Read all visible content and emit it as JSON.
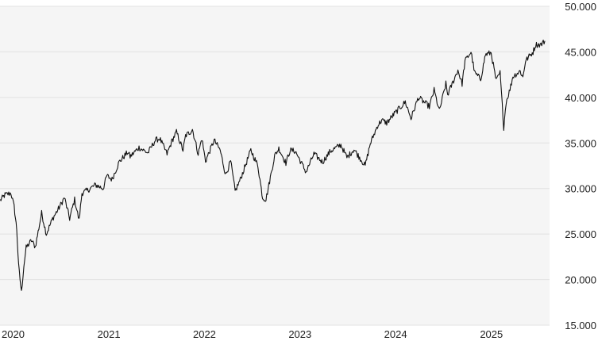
{
  "chart_data": {
    "type": "line",
    "title": "",
    "xlabel": "",
    "ylabel": "",
    "y_axis_side": "right",
    "grid": "horizontal",
    "colors": {
      "plot_background": "#f5f5f5",
      "line": "#111111",
      "grid": "#e2e2e2"
    },
    "ylim": [
      15000,
      50000
    ],
    "xlim": [
      "2020-01-01",
      "2025-09-30"
    ],
    "y_ticks": [
      {
        "value": 15000,
        "label": "15.000"
      },
      {
        "value": 20000,
        "label": "20.000"
      },
      {
        "value": 25000,
        "label": "25.000"
      },
      {
        "value": 30000,
        "label": "30.000"
      },
      {
        "value": 35000,
        "label": "35.000"
      },
      {
        "value": 40000,
        "label": "40.000"
      },
      {
        "value": 45000,
        "label": "45.000"
      },
      {
        "value": 50000,
        "label": "50.000"
      }
    ],
    "x_ticks": [
      {
        "value": "2020-01-01",
        "label": "2020"
      },
      {
        "value": "2021-01-01",
        "label": "2021"
      },
      {
        "value": "2022-01-01",
        "label": "2022"
      },
      {
        "value": "2023-01-01",
        "label": "2023"
      },
      {
        "value": "2024-01-01",
        "label": "2024"
      },
      {
        "value": "2025-01-01",
        "label": "2025"
      }
    ],
    "series": [
      {
        "values": [
          [
            "2020-01-02",
            28700
          ],
          [
            "2020-01-20",
            29300
          ],
          [
            "2020-02-12",
            29500
          ],
          [
            "2020-02-24",
            28000
          ],
          [
            "2020-03-05",
            25500
          ],
          [
            "2020-03-12",
            21500
          ],
          [
            "2020-03-23",
            18600
          ],
          [
            "2020-04-01",
            21500
          ],
          [
            "2020-04-10",
            23500
          ],
          [
            "2020-04-30",
            24300
          ],
          [
            "2020-05-15",
            23600
          ],
          [
            "2020-06-08",
            27300
          ],
          [
            "2020-06-26",
            25000
          ],
          [
            "2020-07-20",
            26700
          ],
          [
            "2020-08-14",
            27900
          ],
          [
            "2020-09-03",
            29000
          ],
          [
            "2020-09-23",
            26700
          ],
          [
            "2020-10-12",
            28800
          ],
          [
            "2020-10-29",
            26500
          ],
          [
            "2020-11-09",
            29500
          ],
          [
            "2020-11-30",
            29800
          ],
          [
            "2020-12-31",
            30400
          ],
          [
            "2021-01-29",
            30000
          ],
          [
            "2021-02-12",
            31400
          ],
          [
            "2021-03-04",
            31000
          ],
          [
            "2021-03-31",
            32900
          ],
          [
            "2021-05-03",
            34000
          ],
          [
            "2021-05-12",
            33500
          ],
          [
            "2021-06-15",
            34500
          ],
          [
            "2021-07-19",
            33900
          ],
          [
            "2021-08-16",
            35300
          ],
          [
            "2021-09-02",
            35500
          ],
          [
            "2021-09-30",
            33800
          ],
          [
            "2021-10-20",
            35300
          ],
          [
            "2021-11-05",
            36200
          ],
          [
            "2021-11-30",
            34200
          ],
          [
            "2021-12-10",
            35800
          ],
          [
            "2021-12-31",
            36300
          ],
          [
            "2022-01-05",
            36500
          ],
          [
            "2022-01-27",
            33800
          ],
          [
            "2022-02-10",
            35500
          ],
          [
            "2022-02-24",
            33000
          ],
          [
            "2022-03-29",
            35300
          ],
          [
            "2022-04-21",
            34200
          ],
          [
            "2022-05-12",
            31500
          ],
          [
            "2022-05-31",
            33000
          ],
          [
            "2022-06-17",
            29700
          ],
          [
            "2022-07-07",
            31000
          ],
          [
            "2022-08-16",
            34200
          ],
          [
            "2022-09-12",
            32500
          ],
          [
            "2022-09-30",
            29000
          ],
          [
            "2022-10-13",
            28800
          ],
          [
            "2022-11-15",
            33600
          ],
          [
            "2022-12-01",
            34400
          ],
          [
            "2022-12-28",
            32800
          ],
          [
            "2023-01-13",
            34200
          ],
          [
            "2023-02-02",
            34100
          ],
          [
            "2023-03-15",
            31800
          ],
          [
            "2023-04-14",
            33800
          ],
          [
            "2023-05-17",
            32900
          ],
          [
            "2023-06-16",
            34100
          ],
          [
            "2023-07-26",
            34800
          ],
          [
            "2023-08-18",
            33400
          ],
          [
            "2023-09-14",
            34300
          ],
          [
            "2023-10-27",
            32500
          ],
          [
            "2023-11-15",
            34900
          ],
          [
            "2023-12-13",
            36900
          ],
          [
            "2023-12-29",
            37500
          ],
          [
            "2024-01-17",
            37200
          ],
          [
            "2024-02-15",
            38200
          ],
          [
            "2024-03-28",
            39500
          ],
          [
            "2024-04-19",
            37700
          ],
          [
            "2024-05-17",
            40000
          ],
          [
            "2024-06-28",
            39000
          ],
          [
            "2024-07-16",
            40800
          ],
          [
            "2024-08-05",
            38500
          ],
          [
            "2024-08-30",
            41500
          ],
          [
            "2024-09-06",
            40300
          ],
          [
            "2024-10-15",
            43000
          ],
          [
            "2024-10-31",
            41500
          ],
          [
            "2024-11-11",
            44000
          ],
          [
            "2024-12-04",
            45000
          ],
          [
            "2024-12-18",
            42700
          ],
          [
            "2025-01-10",
            42000
          ],
          [
            "2025-01-28",
            44700
          ],
          [
            "2025-02-19",
            44900
          ],
          [
            "2025-03-10",
            41800
          ],
          [
            "2025-03-25",
            42700
          ],
          [
            "2025-04-08",
            36700
          ],
          [
            "2025-04-17",
            39500
          ],
          [
            "2025-05-02",
            40900
          ],
          [
            "2025-05-13",
            42300
          ],
          [
            "2025-06-10",
            42900
          ],
          [
            "2025-06-20",
            42200
          ],
          [
            "2025-06-30",
            44000
          ],
          [
            "2025-07-14",
            44500
          ],
          [
            "2025-07-29",
            45000
          ],
          [
            "2025-08-08",
            45800
          ],
          [
            "2025-08-28",
            45800
          ],
          [
            "2025-09-12",
            46200
          ]
        ]
      }
    ]
  }
}
